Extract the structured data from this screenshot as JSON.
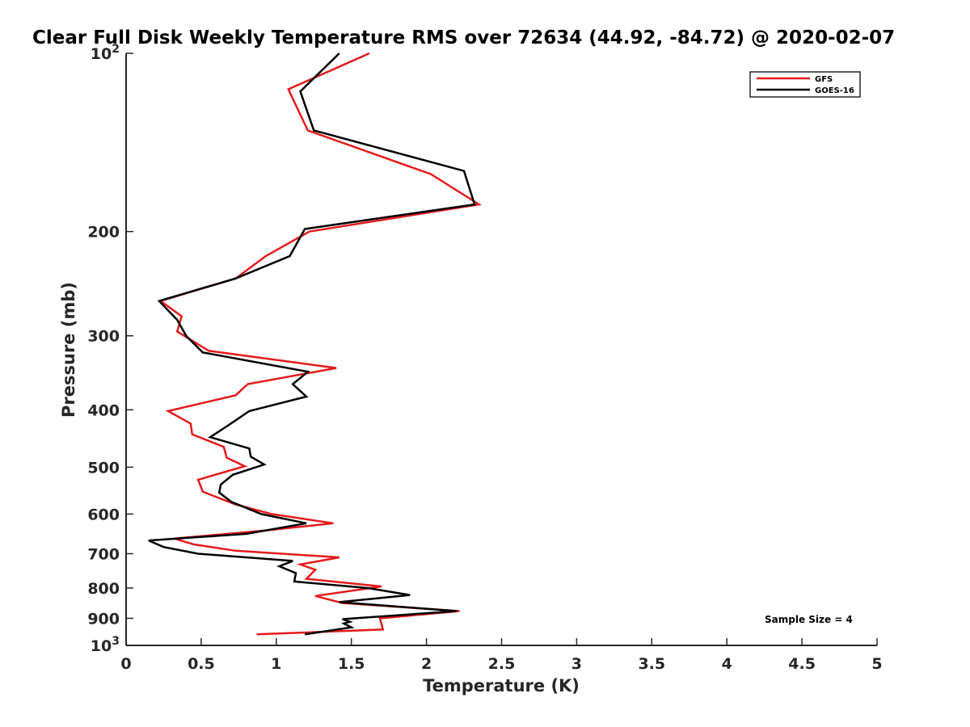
{
  "chart_data": {
    "type": "line",
    "title": "Clear Full Disk Weekly Temperature RMS over 72634 (44.92, -84.72) @ 2020-02-07",
    "xlabel": "Temperature (K)",
    "ylabel": "Pressure (mb)",
    "xlim": [
      0,
      5
    ],
    "ylim": [
      100,
      1000
    ],
    "yscale": "log",
    "y_reversed": true,
    "grid": false,
    "legend_position": "top-right",
    "x_ticks": [
      0,
      0.5,
      1,
      1.5,
      2,
      2.5,
      3,
      3.5,
      4,
      4.5,
      5
    ],
    "x_tick_labels": [
      "0",
      "0.5",
      "1",
      "1.5",
      "2",
      "2.5",
      "3",
      "3.5",
      "4",
      "4.5",
      "5"
    ],
    "y_ticks": [
      100,
      200,
      300,
      400,
      500,
      600,
      700,
      800,
      900,
      1000
    ],
    "y_tick_labels": [
      {
        "base": "10",
        "exp": "2"
      },
      {
        "base": "200"
      },
      {
        "base": "300"
      },
      {
        "base": "400"
      },
      {
        "base": "500"
      },
      {
        "base": "600"
      },
      {
        "base": "700"
      },
      {
        "base": "800"
      },
      {
        "base": "900"
      },
      {
        "base": "10",
        "exp": "3"
      }
    ],
    "annotation": "Sample Size = 4",
    "series": [
      {
        "name": "GFS",
        "color": "#e41a1c",
        "points": [
          [
            1.62,
            100
          ],
          [
            1.08,
            115
          ],
          [
            1.21,
            135
          ],
          [
            2.03,
            160
          ],
          [
            2.35,
            180
          ],
          [
            1.22,
            200
          ],
          [
            0.93,
            220
          ],
          [
            0.73,
            240
          ],
          [
            0.23,
            262
          ],
          [
            0.37,
            278
          ],
          [
            0.34,
            295
          ],
          [
            0.55,
            318
          ],
          [
            1.4,
            340
          ],
          [
            0.81,
            362
          ],
          [
            0.73,
            378
          ],
          [
            0.28,
            402
          ],
          [
            0.43,
            422
          ],
          [
            0.44,
            440
          ],
          [
            0.65,
            462
          ],
          [
            0.67,
            482
          ],
          [
            0.79,
            498
          ],
          [
            0.48,
            525
          ],
          [
            0.51,
            550
          ],
          [
            0.73,
            578
          ],
          [
            0.97,
            600
          ],
          [
            1.38,
            622
          ],
          [
            0.92,
            640
          ],
          [
            0.32,
            660
          ],
          [
            0.45,
            675
          ],
          [
            0.73,
            692
          ],
          [
            1.42,
            710
          ],
          [
            1.16,
            730
          ],
          [
            1.26,
            745
          ],
          [
            1.2,
            772
          ],
          [
            1.7,
            795
          ],
          [
            1.26,
            825
          ],
          [
            1.44,
            848
          ],
          [
            2.22,
            875
          ],
          [
            1.69,
            900
          ],
          [
            1.71,
            940
          ],
          [
            0.87,
            958
          ]
        ]
      },
      {
        "name": "GOES-16",
        "color": "#000000",
        "points": [
          [
            1.42,
            100
          ],
          [
            1.16,
            116
          ],
          [
            1.25,
            135
          ],
          [
            2.25,
            158
          ],
          [
            2.32,
            180
          ],
          [
            1.19,
            198
          ],
          [
            1.09,
            220
          ],
          [
            0.73,
            240
          ],
          [
            0.22,
            262
          ],
          [
            0.34,
            282
          ],
          [
            0.4,
            300
          ],
          [
            0.51,
            320
          ],
          [
            1.21,
            345
          ],
          [
            1.11,
            362
          ],
          [
            1.2,
            380
          ],
          [
            0.82,
            402
          ],
          [
            0.68,
            425
          ],
          [
            0.56,
            445
          ],
          [
            0.82,
            465
          ],
          [
            0.83,
            480
          ],
          [
            0.92,
            495
          ],
          [
            0.71,
            515
          ],
          [
            0.63,
            535
          ],
          [
            0.62,
            552
          ],
          [
            0.7,
            572
          ],
          [
            0.9,
            600
          ],
          [
            1.2,
            622
          ],
          [
            0.8,
            648
          ],
          [
            0.15,
            665
          ],
          [
            0.25,
            682
          ],
          [
            0.48,
            700
          ],
          [
            1.11,
            720
          ],
          [
            1.02,
            735
          ],
          [
            1.13,
            755
          ],
          [
            1.12,
            780
          ],
          [
            1.61,
            800
          ],
          [
            1.89,
            822
          ],
          [
            1.42,
            845
          ],
          [
            2.2,
            875
          ],
          [
            1.44,
            903
          ],
          [
            1.49,
            912
          ],
          [
            1.45,
            918
          ],
          [
            1.5,
            932
          ],
          [
            1.19,
            958
          ]
        ]
      }
    ]
  }
}
